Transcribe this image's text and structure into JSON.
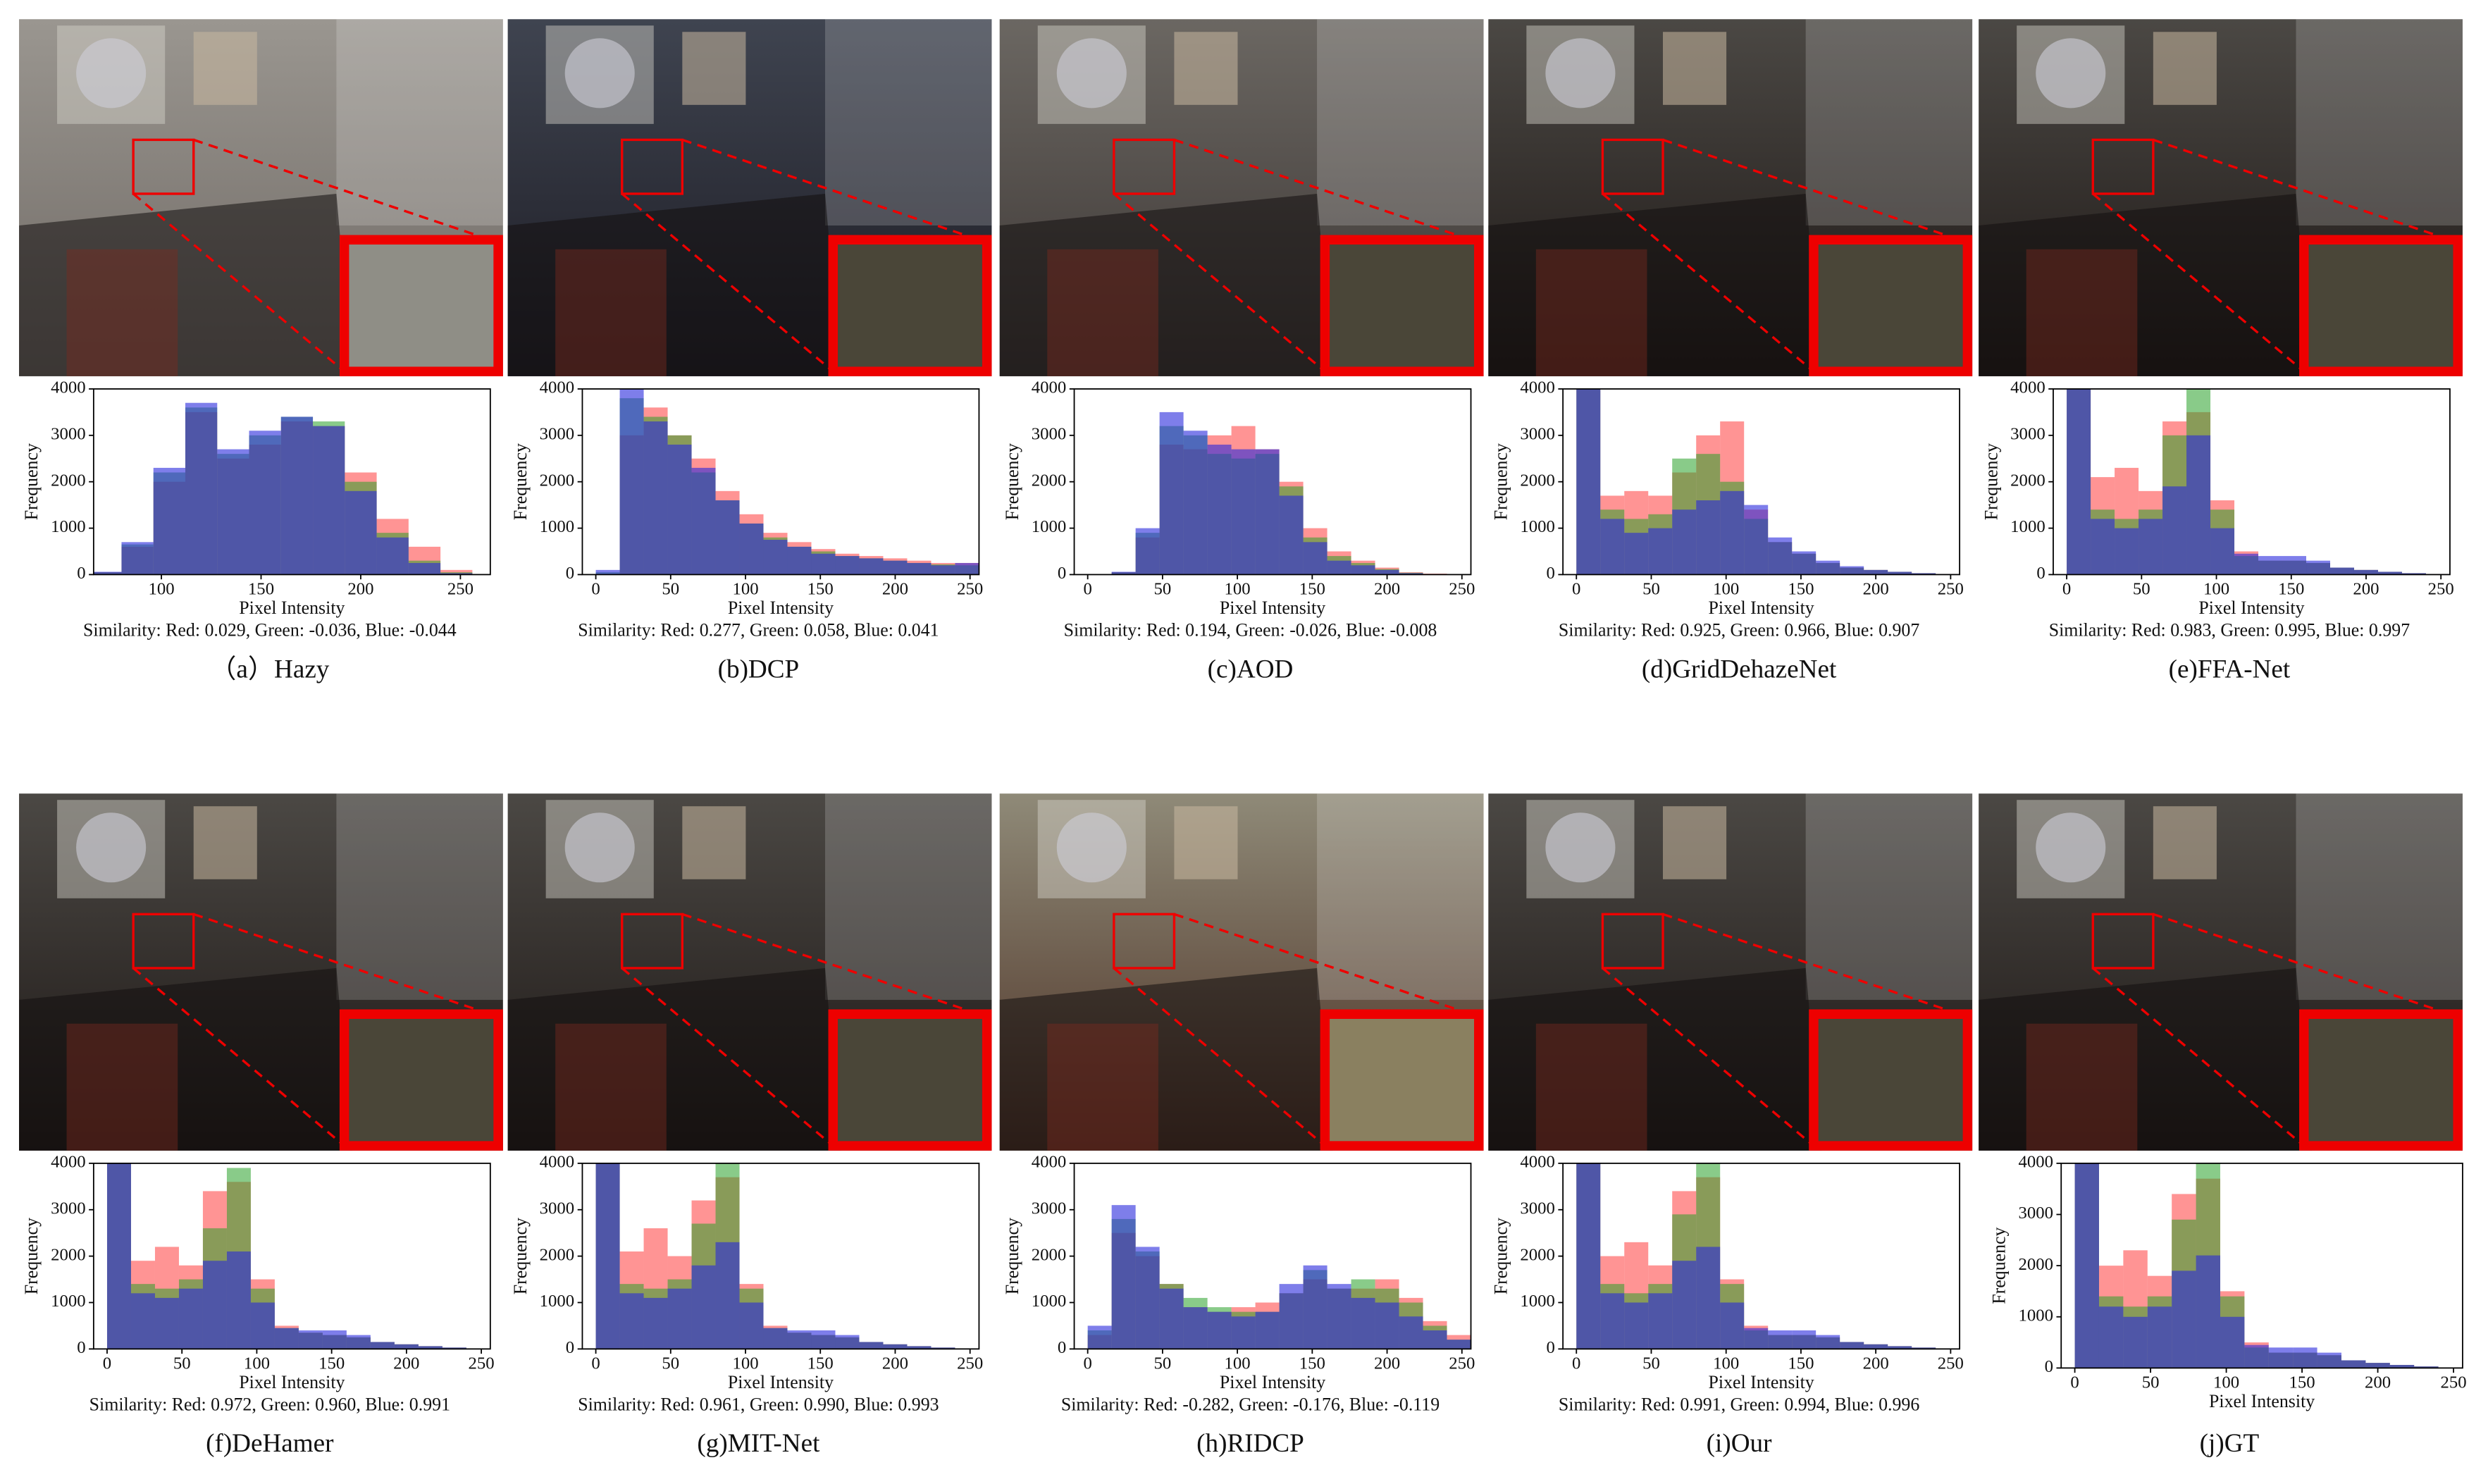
{
  "chart_data": [
    {
      "type": "histogram",
      "caption": "（a）Hazy",
      "xlabel": "Pixel Intensity",
      "ylabel": "Frequency",
      "annotation": "Similarity: Red: 0.029, Green: -0.036, Blue: -0.044",
      "bins": [
        0,
        16,
        32,
        48,
        64,
        80,
        96,
        112,
        128,
        144,
        160,
        176,
        192,
        208,
        224,
        240,
        256
      ],
      "xlim": [
        66,
        265
      ],
      "ylim": [
        0,
        4000
      ],
      "xticks": [
        100,
        150,
        200,
        250
      ],
      "yticks": [
        0,
        1000,
        2000,
        3000,
        4000
      ],
      "series": [
        {
          "color": "rgba(255,60,60,0.55)",
          "values": [
            0,
            0,
            0,
            0,
            50,
            600,
            2000,
            3500,
            2500,
            2800,
            3300,
            3200,
            2200,
            1200,
            600,
            100
          ]
        },
        {
          "color": "rgba(40,160,40,0.55)",
          "values": [
            0,
            0,
            0,
            0,
            50,
            650,
            2200,
            3600,
            2600,
            3000,
            3400,
            3300,
            2000,
            900,
            300,
            50
          ]
        },
        {
          "color": "rgba(40,40,220,0.6)",
          "values": [
            0,
            0,
            0,
            0,
            60,
            700,
            2300,
            3700,
            2700,
            3100,
            3400,
            3200,
            1800,
            800,
            250,
            30
          ]
        }
      ]
    },
    {
      "type": "histogram",
      "caption": "(b)DCP",
      "xlabel": "Pixel Intensity",
      "ylabel": "Frequency",
      "annotation": "Similarity: Red: 0.277, Green: 0.058, Blue: 0.041",
      "bins": [
        0,
        16,
        32,
        48,
        64,
        80,
        96,
        112,
        128,
        144,
        160,
        176,
        192,
        208,
        224,
        240,
        256
      ],
      "xlim": [
        -9,
        256
      ],
      "ylim": [
        0,
        4000
      ],
      "xticks": [
        0,
        50,
        100,
        150,
        200,
        250
      ],
      "yticks": [
        0,
        1000,
        2000,
        3000,
        4000
      ],
      "series": [
        {
          "color": "rgba(255,60,60,0.55)",
          "values": [
            0,
            3000,
            3600,
            3000,
            2500,
            1800,
            1300,
            900,
            700,
            550,
            450,
            400,
            350,
            300,
            250,
            250
          ]
        },
        {
          "color": "rgba(40,160,40,0.55)",
          "values": [
            50,
            3800,
            3400,
            3000,
            2200,
            1600,
            1100,
            800,
            600,
            500,
            400,
            350,
            300,
            250,
            220,
            200
          ]
        },
        {
          "color": "rgba(40,40,220,0.6)",
          "values": [
            100,
            4000,
            3300,
            2800,
            2300,
            1600,
            1100,
            750,
            600,
            450,
            400,
            350,
            300,
            250,
            200,
            250
          ]
        }
      ]
    },
    {
      "type": "histogram",
      "caption": "(c)AOD",
      "xlabel": "Pixel Intensity",
      "ylabel": "Frequency",
      "annotation": "Similarity: Red: 0.194, Green: -0.026, Blue: -0.008",
      "bins": [
        0,
        16,
        32,
        48,
        64,
        80,
        96,
        112,
        128,
        144,
        160,
        176,
        192,
        208,
        224,
        240,
        256
      ],
      "xlim": [
        -9,
        256
      ],
      "ylim": [
        0,
        4000
      ],
      "xticks": [
        0,
        50,
        100,
        150,
        200,
        250
      ],
      "yticks": [
        0,
        1000,
        2000,
        3000,
        4000
      ],
      "series": [
        {
          "color": "rgba(255,60,60,0.55)",
          "values": [
            0,
            50,
            800,
            2800,
            2700,
            3000,
            3200,
            2700,
            2000,
            1000,
            500,
            300,
            150,
            50,
            20,
            0
          ]
        },
        {
          "color": "rgba(40,160,40,0.55)",
          "values": [
            0,
            50,
            900,
            3200,
            3000,
            2600,
            2500,
            2600,
            1900,
            800,
            400,
            250,
            120,
            40,
            10,
            0
          ]
        },
        {
          "color": "rgba(40,40,220,0.6)",
          "values": [
            0,
            60,
            1000,
            3500,
            3100,
            2800,
            2700,
            2700,
            1700,
            700,
            300,
            200,
            100,
            30,
            10,
            0
          ]
        }
      ]
    },
    {
      "type": "histogram",
      "caption": "(d)GridDehazeNet",
      "xlabel": "Pixel Intensity",
      "ylabel": "Frequency",
      "annotation": "Similarity: Red: 0.925, Green: 0.966, Blue: 0.907",
      "bins": [
        0,
        16,
        32,
        48,
        64,
        80,
        96,
        112,
        128,
        144,
        160,
        176,
        192,
        208,
        224,
        240,
        256
      ],
      "xlim": [
        -9,
        256
      ],
      "ylim": [
        0,
        4000
      ],
      "xticks": [
        0,
        50,
        100,
        150,
        200,
        250
      ],
      "yticks": [
        0,
        1000,
        2000,
        3000,
        4000
      ],
      "series": [
        {
          "color": "rgba(255,60,60,0.55)",
          "values": [
            4000,
            1700,
            1800,
            1700,
            2200,
            3000,
            3300,
            1400,
            700,
            450,
            250,
            150,
            100,
            60,
            30,
            10
          ]
        },
        {
          "color": "rgba(40,160,40,0.55)",
          "values": [
            4000,
            1400,
            1200,
            1300,
            2500,
            2600,
            2000,
            1200,
            700,
            450,
            250,
            150,
            100,
            60,
            30,
            10
          ]
        },
        {
          "color": "rgba(40,40,220,0.6)",
          "values": [
            4000,
            1200,
            900,
            1000,
            1400,
            1600,
            1800,
            1500,
            800,
            500,
            300,
            180,
            100,
            60,
            30,
            10
          ]
        }
      ]
    },
    {
      "type": "histogram",
      "caption": "(e)FFA-Net",
      "xlabel": "Pixel Intensity",
      "ylabel": "Frequency",
      "annotation": "Similarity: Red: 0.983, Green: 0.995, Blue: 0.997",
      "bins": [
        0,
        16,
        32,
        48,
        64,
        80,
        96,
        112,
        128,
        144,
        160,
        176,
        192,
        208,
        224,
        240,
        256
      ],
      "xlim": [
        -9,
        256
      ],
      "ylim": [
        0,
        4000
      ],
      "xticks": [
        0,
        50,
        100,
        150,
        200,
        250
      ],
      "yticks": [
        0,
        1000,
        2000,
        3000,
        4000
      ],
      "series": [
        {
          "color": "rgba(255,60,60,0.55)",
          "values": [
            4000,
            2100,
            2300,
            1800,
            3300,
            3500,
            1600,
            500,
            300,
            300,
            250,
            150,
            100,
            60,
            30,
            10
          ]
        },
        {
          "color": "rgba(40,160,40,0.55)",
          "values": [
            4000,
            1400,
            1200,
            1400,
            3000,
            4000,
            1400,
            400,
            300,
            300,
            250,
            150,
            100,
            60,
            30,
            10
          ]
        },
        {
          "color": "rgba(40,40,220,0.6)",
          "values": [
            4000,
            1200,
            1000,
            1200,
            1900,
            3000,
            1000,
            450,
            400,
            400,
            300,
            150,
            100,
            60,
            30,
            10
          ]
        }
      ]
    },
    {
      "type": "histogram",
      "caption": "(f)DeHamer",
      "xlabel": "Pixel Intensity",
      "ylabel": "Frequency",
      "annotation": "Similarity: Red: 0.972, Green: 0.960, Blue: 0.991",
      "bins": [
        0,
        16,
        32,
        48,
        64,
        80,
        96,
        112,
        128,
        144,
        160,
        176,
        192,
        208,
        224,
        240,
        256
      ],
      "xlim": [
        -9,
        256
      ],
      "ylim": [
        0,
        4000
      ],
      "xticks": [
        0,
        50,
        100,
        150,
        200,
        250
      ],
      "yticks": [
        0,
        1000,
        2000,
        3000,
        4000
      ],
      "series": [
        {
          "color": "rgba(255,60,60,0.55)",
          "values": [
            4000,
            1900,
            2200,
            1800,
            3400,
            3600,
            1500,
            500,
            350,
            300,
            250,
            150,
            100,
            60,
            30,
            10
          ]
        },
        {
          "color": "rgba(40,160,40,0.55)",
          "values": [
            4000,
            1400,
            1300,
            1500,
            2600,
            3900,
            1300,
            450,
            350,
            300,
            250,
            150,
            100,
            60,
            30,
            10
          ]
        },
        {
          "color": "rgba(40,40,220,0.6)",
          "values": [
            4000,
            1200,
            1100,
            1300,
            1900,
            2100,
            1000,
            450,
            400,
            400,
            300,
            150,
            100,
            60,
            30,
            10
          ]
        }
      ]
    },
    {
      "type": "histogram",
      "caption": "(g)MIT-Net",
      "xlabel": "Pixel Intensity",
      "ylabel": "Frequency",
      "annotation": "Similarity: Red: 0.961, Green: 0.990, Blue: 0.993",
      "bins": [
        0,
        16,
        32,
        48,
        64,
        80,
        96,
        112,
        128,
        144,
        160,
        176,
        192,
        208,
        224,
        240,
        256
      ],
      "xlim": [
        -9,
        256
      ],
      "ylim": [
        0,
        4000
      ],
      "xticks": [
        0,
        50,
        100,
        150,
        200,
        250
      ],
      "yticks": [
        0,
        1000,
        2000,
        3000,
        4000
      ],
      "series": [
        {
          "color": "rgba(255,60,60,0.55)",
          "values": [
            4000,
            2100,
            2600,
            2000,
            3200,
            3700,
            1400,
            500,
            350,
            300,
            250,
            150,
            100,
            60,
            30,
            10
          ]
        },
        {
          "color": "rgba(40,160,40,0.55)",
          "values": [
            4000,
            1400,
            1300,
            1500,
            2700,
            4000,
            1300,
            450,
            350,
            300,
            250,
            150,
            100,
            60,
            30,
            10
          ]
        },
        {
          "color": "rgba(40,40,220,0.6)",
          "values": [
            4000,
            1200,
            1100,
            1300,
            1800,
            2300,
            1000,
            450,
            400,
            400,
            300,
            150,
            100,
            60,
            30,
            10
          ]
        }
      ]
    },
    {
      "type": "histogram",
      "caption": "(h)RIDCP",
      "xlabel": "Pixel Intensity",
      "ylabel": "Frequency",
      "annotation": "Similarity: Red: -0.282, Green: -0.176, Blue: -0.119",
      "bins": [
        0,
        16,
        32,
        48,
        64,
        80,
        96,
        112,
        128,
        144,
        160,
        176,
        192,
        208,
        224,
        240,
        256
      ],
      "xlim": [
        -9,
        256
      ],
      "ylim": [
        0,
        4000
      ],
      "xticks": [
        0,
        50,
        100,
        150,
        200,
        250
      ],
      "yticks": [
        0,
        1000,
        2000,
        3000,
        4000
      ],
      "series": [
        {
          "color": "rgba(255,60,60,0.55)",
          "values": [
            300,
            2500,
            2000,
            1400,
            900,
            800,
            900,
            1000,
            1200,
            1500,
            1300,
            1300,
            1500,
            1100,
            600,
            300
          ]
        },
        {
          "color": "rgba(40,160,40,0.55)",
          "values": [
            400,
            2800,
            2100,
            1400,
            1100,
            900,
            800,
            800,
            1200,
            1700,
            1300,
            1500,
            1300,
            1000,
            500,
            200
          ]
        },
        {
          "color": "rgba(40,40,220,0.6)",
          "values": [
            500,
            3100,
            2200,
            1300,
            900,
            800,
            700,
            800,
            1400,
            1800,
            1400,
            1100,
            1000,
            700,
            400,
            200
          ]
        }
      ]
    },
    {
      "type": "histogram",
      "caption": "(i)Our",
      "xlabel": "Pixel Intensity",
      "ylabel": "Frequency",
      "annotation": "Similarity: Red: 0.991, Green: 0.994, Blue: 0.996",
      "bins": [
        0,
        16,
        32,
        48,
        64,
        80,
        96,
        112,
        128,
        144,
        160,
        176,
        192,
        208,
        224,
        240,
        256
      ],
      "xlim": [
        -9,
        256
      ],
      "ylim": [
        0,
        4000
      ],
      "xticks": [
        0,
        50,
        100,
        150,
        200,
        250
      ],
      "yticks": [
        0,
        1000,
        2000,
        3000,
        4000
      ],
      "series": [
        {
          "color": "rgba(255,60,60,0.55)",
          "values": [
            4000,
            2000,
            2300,
            1800,
            3400,
            3700,
            1500,
            500,
            300,
            300,
            250,
            150,
            100,
            60,
            30,
            10
          ]
        },
        {
          "color": "rgba(40,160,40,0.55)",
          "values": [
            4000,
            1400,
            1200,
            1400,
            2900,
            4000,
            1400,
            400,
            300,
            300,
            250,
            150,
            100,
            60,
            30,
            10
          ]
        },
        {
          "color": "rgba(40,40,220,0.6)",
          "values": [
            4000,
            1200,
            1000,
            1200,
            1900,
            2200,
            1000,
            450,
            400,
            400,
            300,
            150,
            100,
            60,
            30,
            10
          ]
        }
      ]
    },
    {
      "type": "histogram",
      "caption": "(j)GT",
      "xlabel": "Pixel Intensity",
      "ylabel": "Frequency",
      "bins": [
        0,
        16,
        32,
        48,
        64,
        80,
        96,
        112,
        128,
        144,
        160,
        176,
        192,
        208,
        224,
        240,
        256
      ],
      "xlim": [
        -9,
        256
      ],
      "ylim": [
        0,
        4000
      ],
      "xticks": [
        0,
        50,
        100,
        150,
        200,
        250
      ],
      "yticks": [
        0,
        1000,
        2000,
        3000,
        4000
      ],
      "series": [
        {
          "color": "rgba(255,60,60,0.55)",
          "values": [
            4000,
            2000,
            2300,
            1800,
            3400,
            3700,
            1500,
            500,
            300,
            300,
            250,
            150,
            100,
            60,
            30,
            10
          ]
        },
        {
          "color": "rgba(40,160,40,0.55)",
          "values": [
            4000,
            1400,
            1200,
            1400,
            2900,
            4000,
            1400,
            400,
            300,
            300,
            250,
            150,
            100,
            60,
            30,
            10
          ]
        },
        {
          "color": "rgba(40,40,220,0.6)",
          "values": [
            4000,
            1200,
            1000,
            1200,
            1900,
            2200,
            1000,
            450,
            400,
            400,
            300,
            150,
            100,
            60,
            30,
            10
          ]
        }
      ]
    }
  ]
}
